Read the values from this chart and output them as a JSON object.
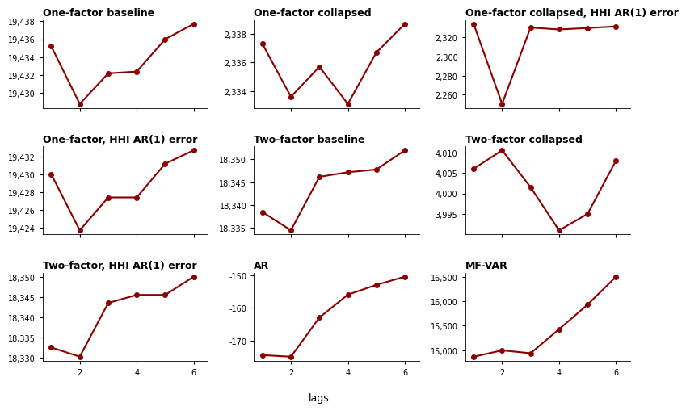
{
  "panels": [
    {
      "title": "One-factor baseline",
      "x": [
        1,
        2,
        3,
        4,
        5,
        6
      ],
      "y": [
        19435.2,
        19428.8,
        19432.2,
        19432.4,
        19436.0,
        19437.7
      ]
    },
    {
      "title": "One-factor collapsed",
      "x": [
        1,
        2,
        3,
        4,
        5,
        6
      ],
      "y": [
        2337.3,
        2333.6,
        2335.7,
        2333.1,
        2336.7,
        2338.7
      ]
    },
    {
      "title": "One-factor collapsed, HHI AR(1) error",
      "x": [
        1,
        2,
        3,
        4,
        5,
        6
      ],
      "y": [
        2333.8,
        2250.5,
        2330.0,
        2328.0,
        2329.5,
        2331.2
      ]
    },
    {
      "title": "One-factor, HHI AR(1) error",
      "x": [
        1,
        2,
        3,
        4,
        5,
        6
      ],
      "y": [
        19430.0,
        19423.7,
        19427.4,
        19427.4,
        19431.2,
        19432.7
      ]
    },
    {
      "title": "Two-factor baseline",
      "x": [
        1,
        2,
        3,
        4,
        5,
        6
      ],
      "y": [
        18338.5,
        18334.5,
        18346.2,
        18347.2,
        18347.8,
        18352.0
      ]
    },
    {
      "title": "Two-factor collapsed",
      "x": [
        1,
        2,
        3,
        4,
        5,
        6
      ],
      "y": [
        4006.0,
        4010.5,
        4001.5,
        3991.0,
        3995.0,
        4008.0
      ]
    },
    {
      "title": "Two-factor, HHI AR(1) error",
      "x": [
        1,
        2,
        3,
        4,
        5,
        6
      ],
      "y": [
        18332.5,
        18330.2,
        18343.5,
        18345.5,
        18345.5,
        18350.0
      ]
    },
    {
      "title": "AR",
      "x": [
        1,
        2,
        3,
        4,
        5,
        6
      ],
      "y": [
        -174.5,
        -175.0,
        -163.0,
        -156.0,
        -153.0,
        -150.5
      ]
    },
    {
      "title": "MF-VAR",
      "x": [
        1,
        2,
        3,
        4,
        5,
        6
      ],
      "y": [
        14870.0,
        15000.0,
        14940.0,
        15430.0,
        15930.0,
        16500.0
      ]
    }
  ],
  "line_color": "#8B0000",
  "marker": "o",
  "markersize": 4,
  "linewidth": 1.5,
  "xlabel": "lags",
  "title_fontsize": 9,
  "label_fontsize": 9,
  "tick_fontsize": 7,
  "background_color": "#ffffff",
  "xticks": [
    2,
    4,
    6
  ]
}
